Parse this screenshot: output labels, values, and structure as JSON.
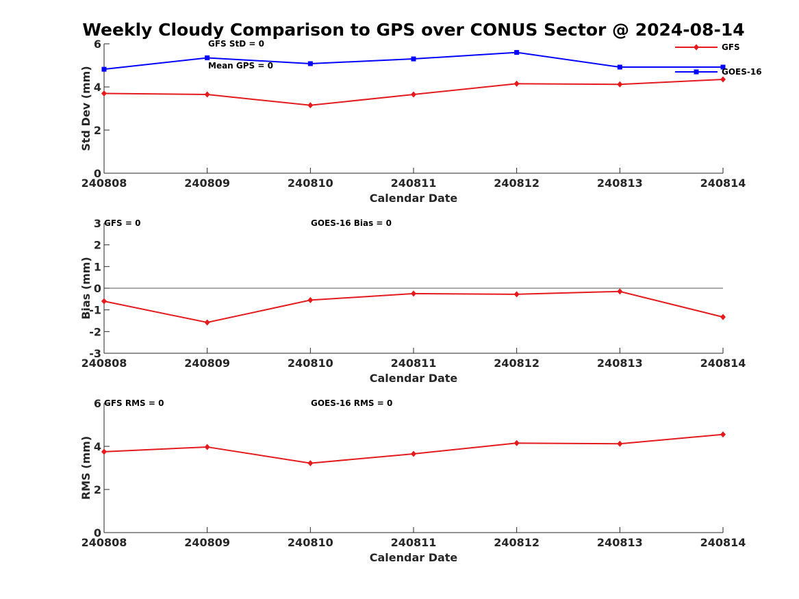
{
  "figure_title": "Weekly Cloudy Comparison to GPS over CONUS Sector @ 2024-08-14",
  "colors": {
    "GFS": "#e41a1c",
    "GOES-16": "#0000ff",
    "axis": "#262626",
    "zero_line": "#555555"
  },
  "chart_data": [
    {
      "type": "line",
      "categories": [
        "240808",
        "240809",
        "240810",
        "240811",
        "240812",
        "240813",
        "240814"
      ],
      "series": [
        {
          "name": "GFS",
          "marker": "diamond",
          "values": [
            3.7,
            3.65,
            3.15,
            3.65,
            4.15,
            4.12,
            4.35
          ]
        },
        {
          "name": "GOES-16",
          "marker": "square",
          "values": [
            4.82,
            5.35,
            5.08,
            5.3,
            5.6,
            4.92,
            4.92
          ]
        }
      ],
      "xlabel": "Calendar Date",
      "ylabel": "Std Dev (mm)",
      "ylim": [
        0,
        6
      ],
      "yticks": [
        0,
        2,
        4,
        6
      ],
      "legend": {
        "placement": "top-right",
        "entries": [
          "GFS",
          "GOES-16"
        ]
      },
      "annotations": [
        "GFS StD = 0",
        "Mean GPS = 0"
      ]
    },
    {
      "type": "line",
      "categories": [
        "240808",
        "240809",
        "240810",
        "240811",
        "240812",
        "240813",
        "240814"
      ],
      "series": [
        {
          "name": "GFS",
          "marker": "diamond",
          "values": [
            -0.6,
            -1.58,
            -0.55,
            -0.25,
            -0.28,
            -0.15,
            -1.33
          ]
        }
      ],
      "xlabel": "Calendar Date",
      "ylabel": "Bias (mm)",
      "ylim": [
        -3,
        3
      ],
      "yticks": [
        -3,
        -2,
        -1,
        0,
        1,
        2,
        3
      ],
      "zero_line": true,
      "annotations": [
        "GFS = 0",
        "GOES-16 Bias  = 0"
      ]
    },
    {
      "type": "line",
      "categories": [
        "240808",
        "240809",
        "240810",
        "240811",
        "240812",
        "240813",
        "240814"
      ],
      "series": [
        {
          "name": "GFS",
          "marker": "diamond",
          "values": [
            3.75,
            3.97,
            3.22,
            3.65,
            4.15,
            4.12,
            4.55
          ]
        }
      ],
      "xlabel": "Calendar Date",
      "ylabel": "RMS (mm)",
      "ylim": [
        0,
        6
      ],
      "yticks": [
        0,
        2,
        4,
        6
      ],
      "annotations": [
        "GFS RMS = 0",
        "GOES-16 RMS = 0"
      ]
    }
  ]
}
